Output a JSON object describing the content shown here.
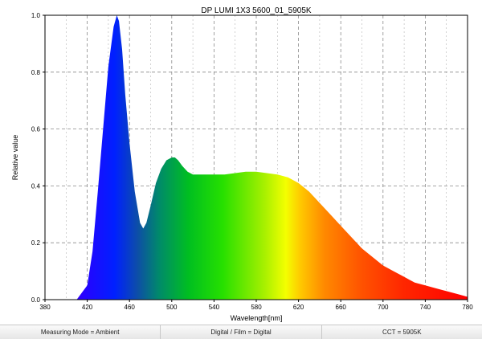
{
  "chart_data": {
    "type": "area",
    "title": "DP LUMI 1X3 5600_01_5905K",
    "xlabel": "Wavelength[nm]",
    "ylabel": "Relative value",
    "xlim": [
      380,
      780
    ],
    "ylim": [
      0,
      1.0
    ],
    "x_ticks": [
      380,
      420,
      460,
      500,
      540,
      580,
      620,
      660,
      700,
      740,
      780
    ],
    "x_tick_labels": [
      "380",
      "420",
      "460",
      "500",
      "540",
      "580",
      "620",
      "660",
      "700",
      "740",
      "780"
    ],
    "y_ticks": [
      0,
      0.2,
      0.4,
      0.6,
      0.8,
      1.0
    ],
    "y_tick_labels": [
      "0.0",
      "0.2",
      "0.4",
      "0.6",
      "0.8",
      "1.0"
    ],
    "grid": true,
    "fill": "visible-spectrum color gradient (violet to red)",
    "series": [
      {
        "x": [
          410,
          420,
          425,
          430,
          435,
          440,
          445,
          448,
          450,
          453,
          456,
          460,
          465,
          470,
          473,
          476,
          480,
          485,
          490,
          495,
          500,
          503,
          506,
          510,
          515,
          520,
          525,
          530,
          540,
          550,
          560,
          570,
          580,
          590,
          600,
          610,
          620,
          630,
          640,
          650,
          660,
          670,
          680,
          690,
          700,
          710,
          720,
          730,
          740,
          750,
          760,
          770,
          780
        ],
        "y": [
          0.0,
          0.05,
          0.17,
          0.38,
          0.6,
          0.82,
          0.96,
          1.0,
          0.98,
          0.88,
          0.72,
          0.55,
          0.38,
          0.27,
          0.25,
          0.27,
          0.33,
          0.41,
          0.46,
          0.49,
          0.5,
          0.5,
          0.49,
          0.47,
          0.45,
          0.44,
          0.44,
          0.44,
          0.44,
          0.44,
          0.445,
          0.45,
          0.45,
          0.445,
          0.44,
          0.43,
          0.41,
          0.38,
          0.34,
          0.3,
          0.26,
          0.22,
          0.18,
          0.15,
          0.12,
          0.1,
          0.08,
          0.06,
          0.05,
          0.04,
          0.03,
          0.02,
          0.01
        ]
      }
    ]
  },
  "status_bar": {
    "measuring_mode": "Measuring Mode = Ambient",
    "film_mode": "Digital / Film = Digital",
    "cct": "CCT = 5905K"
  }
}
